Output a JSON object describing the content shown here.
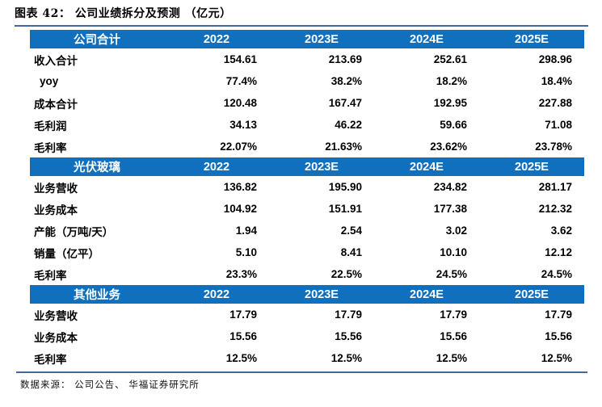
{
  "title": "图表 42： 公司业绩拆分及预测 （亿元）",
  "footer": {
    "source": "数据来源： 公司公告、 华福证券研究所"
  },
  "colors": {
    "header_bg": "#1170bd",
    "header_text": "#ffffff",
    "rule": "#46679b",
    "body_text": "#000000"
  },
  "chart_data": {
    "type": "table",
    "title": "公司业绩拆分及预测（亿元）",
    "year_columns": [
      "2022",
      "2023E",
      "2024E",
      "2025E"
    ],
    "sections": [
      {
        "name": "公司合计",
        "rows": [
          {
            "label": "收入合计",
            "indent": false,
            "values": [
              "154.61",
              "213.69",
              "252.61",
              "298.96"
            ]
          },
          {
            "label": "yoy",
            "indent": true,
            "values": [
              "77.4%",
              "38.2%",
              "18.2%",
              "18.4%"
            ]
          },
          {
            "label": "成本合计",
            "indent": false,
            "values": [
              "120.48",
              "167.47",
              "192.95",
              "227.88"
            ]
          },
          {
            "label": "毛利润",
            "indent": false,
            "values": [
              "34.13",
              "46.22",
              "59.66",
              "71.08"
            ]
          },
          {
            "label": "毛利率",
            "indent": false,
            "values": [
              "22.07%",
              "21.63%",
              "23.62%",
              "23.78%"
            ]
          }
        ]
      },
      {
        "name": "光伏玻璃",
        "rows": [
          {
            "label": "业务营收",
            "indent": false,
            "values": [
              "136.82",
              "195.90",
              "234.82",
              "281.17"
            ]
          },
          {
            "label": "业务成本",
            "indent": false,
            "values": [
              "104.92",
              "151.91",
              "177.38",
              "212.32"
            ]
          },
          {
            "label": "产能（万吨/天）",
            "indent": false,
            "values": [
              "1.94",
              "2.54",
              "3.02",
              "3.62"
            ]
          },
          {
            "label": "销量（亿平）",
            "indent": false,
            "values": [
              "5.10",
              "8.41",
              "10.10",
              "12.12"
            ]
          },
          {
            "label": "毛利率",
            "indent": false,
            "values": [
              "23.3%",
              "22.5%",
              "24.5%",
              "24.5%"
            ]
          }
        ]
      },
      {
        "name": "其他业务",
        "rows": [
          {
            "label": "业务营收",
            "indent": false,
            "values": [
              "17.79",
              "17.79",
              "17.79",
              "17.79"
            ]
          },
          {
            "label": "业务成本",
            "indent": false,
            "values": [
              "15.56",
              "15.56",
              "15.56",
              "15.56"
            ]
          },
          {
            "label": "毛利率",
            "indent": false,
            "values": [
              "12.5%",
              "12.5%",
              "12.5%",
              "12.5%"
            ]
          }
        ]
      }
    ]
  }
}
